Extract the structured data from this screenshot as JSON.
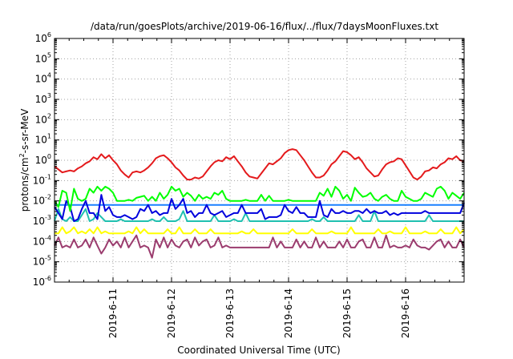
{
  "chart_data": {
    "type": "line",
    "title": "/data/run/goesPlots/archive/2019-06-16/flux/../flux/7daysMoonFluxes.txt",
    "xlabel": "Coordinated Universal Time (UTC)",
    "ylabel_base": "protons/cm",
    "ylabel_sup": "2",
    "ylabel_rest": "-s-sr-MeV",
    "y_scale": "log",
    "ylim": [
      1e-06,
      1000000.0
    ],
    "y_ticks": [
      {
        "base": "10",
        "exp": "6",
        "value": 1000000.0
      },
      {
        "base": "10",
        "exp": "5",
        "value": 100000.0
      },
      {
        "base": "10",
        "exp": "4",
        "value": 10000.0
      },
      {
        "base": "10",
        "exp": "3",
        "value": 1000.0
      },
      {
        "base": "10",
        "exp": "2",
        "value": 100.0
      },
      {
        "base": "10",
        "exp": "1",
        "value": 10.0
      },
      {
        "base": "10",
        "exp": "0",
        "value": 1.0
      },
      {
        "base": "10",
        "exp": "-1",
        "value": 0.1
      },
      {
        "base": "10",
        "exp": "-2",
        "value": 0.01
      },
      {
        "base": "10",
        "exp": "-3",
        "value": 0.001
      },
      {
        "base": "10",
        "exp": "-4",
        "value": 0.0001
      },
      {
        "base": "10",
        "exp": "-5",
        "value": 1e-05
      },
      {
        "base": "10",
        "exp": "-6",
        "value": 1e-06
      }
    ],
    "x_ticks": [
      "2019-6-11",
      "2019-6-12",
      "2019-6-13",
      "2019-6-14",
      "2019-6-15",
      "2019-6-16"
    ],
    "x_range_days": [
      "2019-06-10T00:00",
      "2019-06-17T00:00"
    ],
    "grid": true,
    "series": [
      {
        "color": "#e41a1c",
        "log10_values": [
          -0.3,
          -0.45,
          -0.6,
          -0.55,
          -0.5,
          -0.55,
          -0.4,
          -0.3,
          -0.15,
          -0.05,
          0.15,
          0.05,
          0.3,
          0.1,
          0.25,
          0.0,
          -0.2,
          -0.5,
          -0.7,
          -0.85,
          -0.6,
          -0.55,
          -0.6,
          -0.5,
          -0.35,
          -0.15,
          0.1,
          0.2,
          0.25,
          0.1,
          -0.1,
          -0.35,
          -0.5,
          -0.75,
          -0.95,
          -0.95,
          -0.85,
          -0.9,
          -0.8,
          -0.55,
          -0.3,
          -0.1,
          0.0,
          -0.05,
          0.15,
          0.05,
          0.2,
          -0.05,
          -0.3,
          -0.6,
          -0.8,
          -0.85,
          -0.9,
          -0.65,
          -0.4,
          -0.15,
          -0.2,
          -0.05,
          0.1,
          0.35,
          0.5,
          0.55,
          0.5,
          0.25,
          0.0,
          -0.3,
          -0.6,
          -0.85,
          -0.85,
          -0.75,
          -0.5,
          -0.2,
          -0.05,
          0.2,
          0.45,
          0.4,
          0.25,
          0.05,
          0.15,
          -0.1,
          -0.4,
          -0.6,
          -0.8,
          -0.75,
          -0.45,
          -0.2,
          -0.1,
          -0.05,
          0.1,
          0.05,
          -0.25,
          -0.55,
          -0.85,
          -0.95,
          -0.8,
          -0.55,
          -0.5,
          -0.35,
          -0.4,
          -0.2,
          -0.1,
          0.1,
          0.05,
          0.2,
          0.0,
          -0.05
        ]
      },
      {
        "color": "#00ff00",
        "log10_values": [
          -2.0,
          -2.3,
          -1.5,
          -1.6,
          -2.5,
          -1.4,
          -1.9,
          -2.0,
          -1.9,
          -1.4,
          -1.6,
          -1.3,
          -1.5,
          -1.3,
          -1.4,
          -1.6,
          -2.0,
          -2.0,
          -2.0,
          -1.95,
          -2.0,
          -1.85,
          -1.8,
          -1.75,
          -2.0,
          -1.8,
          -2.0,
          -1.6,
          -1.9,
          -1.7,
          -1.3,
          -1.5,
          -1.4,
          -1.8,
          -1.6,
          -1.75,
          -2.0,
          -1.7,
          -1.9,
          -1.8,
          -1.9,
          -1.6,
          -1.7,
          -1.5,
          -1.9,
          -2.0,
          -2.0,
          -2.0,
          -2.0,
          -1.95,
          -2.0,
          -2.0,
          -2.0,
          -1.7,
          -2.0,
          -1.75,
          -2.0,
          -2.0,
          -2.0,
          -2.0,
          -1.95,
          -2.0,
          -2.0,
          -2.0,
          -2.0,
          -2.0,
          -2.0,
          -2.0,
          -1.6,
          -1.75,
          -1.4,
          -1.8,
          -1.3,
          -1.5,
          -1.9,
          -1.7,
          -2.0,
          -1.35,
          -1.6,
          -1.8,
          -1.75,
          -1.6,
          -1.9,
          -2.0,
          -1.8,
          -1.7,
          -1.9,
          -2.0,
          -2.0,
          -1.5,
          -1.8,
          -1.9,
          -2.0,
          -2.0,
          -1.9,
          -1.6,
          -1.7,
          -1.8,
          -1.4,
          -1.3,
          -1.5,
          -1.9,
          -1.6,
          -1.75,
          -1.9,
          -1.6
        ]
      },
      {
        "color": "#0000dd",
        "log10_values": [
          -2.3,
          -2.6,
          -2.9,
          -2.0,
          -2.3,
          -3.0,
          -2.9,
          -2.4,
          -2.0,
          -2.6,
          -2.6,
          -2.9,
          -1.7,
          -2.5,
          -2.3,
          -2.7,
          -2.8,
          -2.8,
          -2.7,
          -2.8,
          -2.9,
          -2.8,
          -2.4,
          -2.5,
          -2.2,
          -2.6,
          -2.5,
          -2.7,
          -2.6,
          -2.6,
          -1.9,
          -2.4,
          -2.2,
          -1.9,
          -2.6,
          -2.5,
          -2.8,
          -2.6,
          -2.6,
          -2.2,
          -2.6,
          -2.7,
          -2.6,
          -2.5,
          -2.8,
          -2.7,
          -2.6,
          -2.6,
          -2.2,
          -2.6,
          -2.6,
          -2.6,
          -2.6,
          -2.4,
          -2.9,
          -2.8,
          -2.8,
          -2.8,
          -2.7,
          -2.2,
          -2.5,
          -2.6,
          -2.3,
          -2.6,
          -2.6,
          -2.8,
          -2.8,
          -2.8,
          -2.0,
          -2.7,
          -2.8,
          -2.4,
          -2.6,
          -2.6,
          -2.5,
          -2.6,
          -2.6,
          -2.5,
          -2.5,
          -2.6,
          -2.4,
          -2.6,
          -2.5,
          -2.6,
          -2.6,
          -2.5,
          -2.7,
          -2.6,
          -2.7,
          -2.6,
          -2.6,
          -2.6,
          -2.6,
          -2.6,
          -2.6,
          -2.5,
          -2.6,
          -2.6,
          -2.6,
          -2.6,
          -2.6,
          -2.6,
          -2.6,
          -2.6,
          -2.6,
          -2.1
        ]
      },
      {
        "color": "#1a80ff",
        "log10_values": [
          -2.2,
          -2.2,
          -2.2,
          -2.2,
          -2.2,
          -2.2,
          -2.2,
          -2.2,
          -2.2,
          -2.2,
          -2.2,
          -2.2,
          -2.2,
          -2.2,
          -2.2,
          -2.2,
          -2.2,
          -2.2,
          -2.2,
          -2.2,
          -2.2,
          -2.2,
          -2.2,
          -2.2,
          -2.2,
          -2.2,
          -2.2,
          -2.2,
          -2.2,
          -2.2,
          -2.2,
          -2.2,
          -2.2,
          -2.2,
          -2.2,
          -2.2,
          -2.2,
          -2.2,
          -2.2,
          -2.2,
          -2.2,
          -2.2,
          -2.2,
          -2.2,
          -2.2,
          -2.2,
          -2.2,
          -2.2,
          -2.2,
          -2.2,
          -2.2,
          -2.2,
          -2.2,
          -2.2,
          -2.2,
          -2.2,
          -2.2,
          -2.2,
          -2.2,
          -2.2,
          -2.2,
          -2.2,
          -2.2,
          -2.2,
          -2.2,
          -2.2,
          -2.2,
          -2.2,
          -2.2,
          -2.2,
          -2.2,
          -2.2,
          -2.2,
          -2.2,
          -2.2,
          -2.2,
          -2.2,
          -2.2,
          -2.2,
          -2.2,
          -2.2,
          -2.2,
          -2.2,
          -2.2,
          -2.2,
          -2.2,
          -2.2,
          -2.2,
          -2.2,
          -2.2,
          -2.2,
          -2.2,
          -2.2,
          -2.2,
          -2.2,
          -2.2,
          -2.2,
          -2.2,
          -2.2,
          -2.2,
          -2.2,
          -2.2,
          -2.2,
          -2.2,
          -2.2,
          -2.2
        ]
      },
      {
        "color": "#20c0b0",
        "log10_values": [
          -3.0,
          -2.4,
          -2.9,
          -3.0,
          -2.8,
          -3.0,
          -3.0,
          -2.7,
          -2.4,
          -3.0,
          -2.9,
          -2.6,
          -2.8,
          -3.0,
          -3.0,
          -3.0,
          -3.0,
          -2.9,
          -3.0,
          -3.0,
          -3.0,
          -3.0,
          -3.0,
          -3.0,
          -3.0,
          -2.9,
          -3.0,
          -3.0,
          -2.8,
          -3.0,
          -3.0,
          -3.0,
          -2.9,
          -2.5,
          -3.0,
          -3.0,
          -3.0,
          -3.0,
          -3.0,
          -3.0,
          -3.0,
          -2.7,
          -3.0,
          -3.0,
          -3.0,
          -3.0,
          -2.9,
          -3.0,
          -3.0,
          -2.6,
          -3.0,
          -3.0,
          -3.0,
          -3.0,
          -3.0,
          -3.0,
          -3.0,
          -3.0,
          -3.0,
          -3.0,
          -3.0,
          -3.0,
          -3.0,
          -3.0,
          -3.0,
          -3.0,
          -2.9,
          -3.0,
          -3.0,
          -2.8,
          -3.0,
          -3.0,
          -3.0,
          -3.0,
          -3.0,
          -3.0,
          -3.0,
          -3.0,
          -2.7,
          -3.0,
          -3.0,
          -3.0,
          -2.5,
          -3.0,
          -3.0,
          -3.0,
          -3.0,
          -3.0,
          -3.0,
          -3.0,
          -3.0,
          -3.0,
          -3.0,
          -3.0,
          -3.0,
          -3.0,
          -2.7,
          -3.0,
          -3.0,
          -3.0,
          -3.0,
          -3.0,
          -3.0,
          -3.0,
          -3.0,
          -3.0
        ]
      },
      {
        "color": "#ffff00",
        "log10_values": [
          -3.6,
          -3.6,
          -3.3,
          -3.6,
          -3.5,
          -3.3,
          -3.6,
          -3.5,
          -3.6,
          -3.4,
          -3.6,
          -3.3,
          -3.6,
          -3.5,
          -3.6,
          -3.6,
          -3.6,
          -3.6,
          -3.6,
          -3.5,
          -3.6,
          -3.3,
          -3.6,
          -3.4,
          -3.6,
          -3.6,
          -3.6,
          -3.6,
          -3.6,
          -3.4,
          -3.6,
          -3.6,
          -3.3,
          -3.6,
          -3.6,
          -3.6,
          -3.4,
          -3.6,
          -3.6,
          -3.6,
          -3.4,
          -3.6,
          -3.6,
          -3.6,
          -3.6,
          -3.6,
          -3.6,
          -3.6,
          -3.5,
          -3.6,
          -3.6,
          -3.4,
          -3.6,
          -3.6,
          -3.6,
          -3.6,
          -3.6,
          -3.6,
          -3.6,
          -3.6,
          -3.6,
          -3.4,
          -3.6,
          -3.6,
          -3.6,
          -3.6,
          -3.4,
          -3.6,
          -3.6,
          -3.6,
          -3.6,
          -3.5,
          -3.6,
          -3.6,
          -3.6,
          -3.6,
          -3.3,
          -3.6,
          -3.6,
          -3.6,
          -3.6,
          -3.6,
          -3.6,
          -3.4,
          -3.6,
          -3.6,
          -3.5,
          -3.6,
          -3.6,
          -3.6,
          -3.3,
          -3.6,
          -3.6,
          -3.6,
          -3.6,
          -3.5,
          -3.6,
          -3.6,
          -3.6,
          -3.4,
          -3.6,
          -3.6,
          -3.6,
          -3.3,
          -3.6,
          -3.4
        ]
      },
      {
        "color": "#9b3c6e",
        "log10_values": [
          -4.2,
          -3.8,
          -4.3,
          -4.2,
          -4.3,
          -3.9,
          -4.3,
          -4.2,
          -3.9,
          -4.3,
          -3.8,
          -4.2,
          -4.6,
          -4.3,
          -3.9,
          -4.2,
          -4.0,
          -4.3,
          -3.8,
          -4.3,
          -4.0,
          -3.7,
          -4.3,
          -4.2,
          -4.3,
          -4.8,
          -3.9,
          -4.3,
          -3.8,
          -4.3,
          -3.9,
          -4.2,
          -4.3,
          -4.0,
          -3.9,
          -4.3,
          -3.8,
          -4.2,
          -4.0,
          -3.9,
          -4.3,
          -4.2,
          -3.8,
          -4.3,
          -4.2,
          -4.3,
          -4.3,
          -4.3,
          -4.3,
          -4.3,
          -4.3,
          -4.3,
          -4.3,
          -4.3,
          -4.3,
          -4.3,
          -3.8,
          -4.3,
          -4.0,
          -4.3,
          -4.3,
          -4.3,
          -3.9,
          -4.3,
          -4.0,
          -4.3,
          -4.3,
          -3.8,
          -4.3,
          -4.0,
          -4.3,
          -4.3,
          -4.3,
          -4.0,
          -4.3,
          -3.9,
          -4.3,
          -4.3,
          -4.0,
          -3.9,
          -4.3,
          -4.3,
          -3.8,
          -4.3,
          -4.3,
          -3.7,
          -4.3,
          -4.2,
          -4.3,
          -4.3,
          -4.2,
          -4.3,
          -3.9,
          -4.2,
          -4.3,
          -4.3,
          -4.4,
          -4.2,
          -4.0,
          -3.9,
          -4.3,
          -4.0,
          -4.3,
          -4.3,
          -3.9,
          -4.3
        ]
      }
    ]
  }
}
